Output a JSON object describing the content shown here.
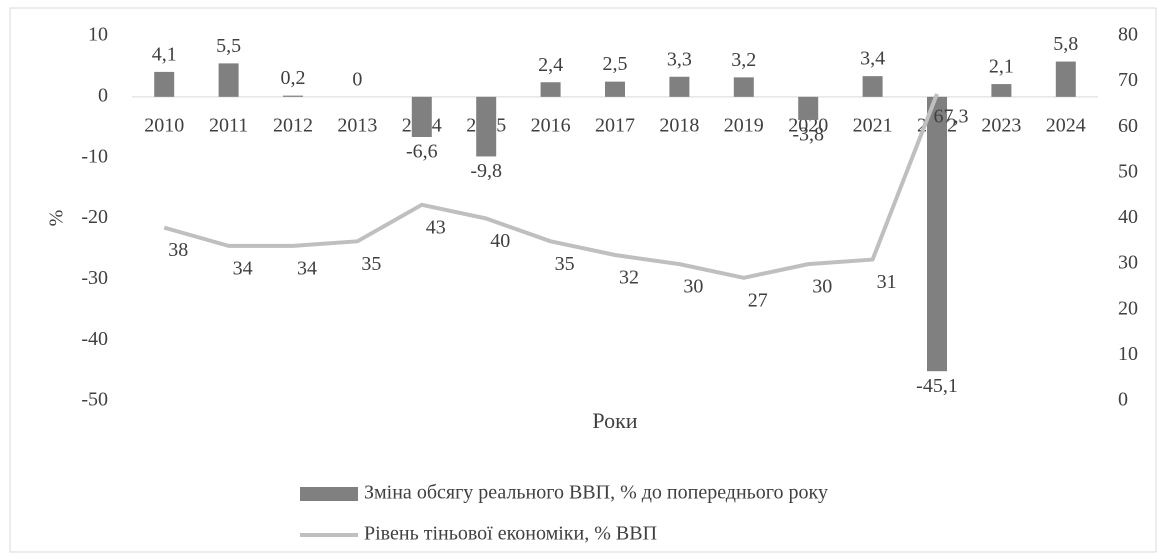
{
  "chart_data": {
    "type": "bar_line",
    "x_label": "Роки",
    "y_label": "%",
    "categories": [
      "2010",
      "2011",
      "2012",
      "2013",
      "2014",
      "2015",
      "2016",
      "2017",
      "2018",
      "2019",
      "2020",
      "2021",
      "2022",
      "2023",
      "2024"
    ],
    "series": [
      {
        "name": "Зміна обсягу реального ВВП, % до попереднього року",
        "type": "bar",
        "color": "#808080",
        "axis": "y",
        "values": [
          4.1,
          5.5,
          0.2,
          0,
          -6.6,
          -9.8,
          2.4,
          2.5,
          3.3,
          3.2,
          -3.8,
          3.4,
          -45.1,
          2.1,
          5.8
        ],
        "value_labels": [
          "4,1",
          "5,5",
          "0,2",
          "0",
          "-6,6",
          "-9,8",
          "2,4",
          "2,5",
          "3,3",
          "3,2",
          "-3,8",
          "3,4",
          "-45,1",
          "2,1",
          "5,8"
        ]
      },
      {
        "name": "Рівень тіньової економіки, % ВВП",
        "type": "line",
        "color": "#bfbfbf",
        "axis": "y2",
        "values": [
          38,
          34,
          34,
          35,
          43,
          40,
          35,
          32,
          30,
          27,
          30,
          31,
          67.3,
          null,
          null
        ],
        "value_labels": [
          "38",
          "34",
          "34",
          "35",
          "43",
          "40",
          "35",
          "32",
          "30",
          "27",
          "30",
          "31",
          "67,3",
          null,
          null
        ]
      }
    ],
    "ylim": [
      -50,
      10
    ],
    "yticks": [
      -50,
      -40,
      -30,
      -20,
      -10,
      0,
      10
    ],
    "y2lim": [
      0,
      80
    ],
    "y2ticks": [
      0,
      10,
      20,
      30,
      40,
      50,
      60,
      70,
      80
    ],
    "legend": "bottom"
  }
}
